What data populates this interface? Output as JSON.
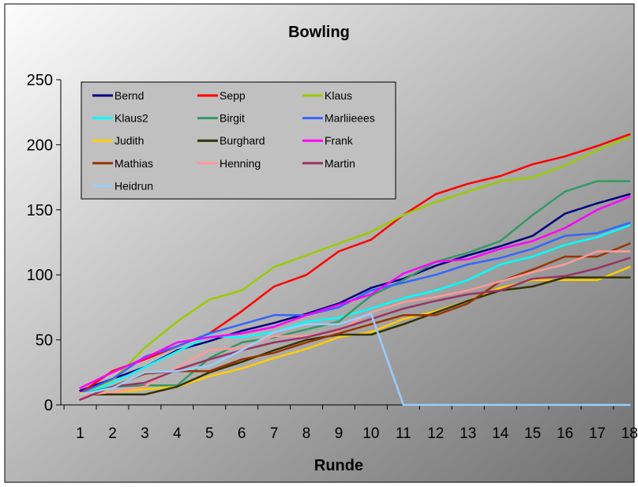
{
  "chart_data": {
    "type": "line",
    "title": "Bowling",
    "xlabel": "Runde",
    "ylabel": "",
    "ylim": [
      0,
      250
    ],
    "yticks": [
      "0",
      "50",
      "100",
      "150",
      "200",
      "250"
    ],
    "categories": [
      "1",
      "2",
      "3",
      "4",
      "5",
      "6",
      "7",
      "8",
      "9",
      "10",
      "11",
      "12",
      "13",
      "14",
      "15",
      "16",
      "17",
      "18"
    ],
    "grid": false,
    "legend_position": "top-left",
    "colors": {
      "background_gradient": [
        "#fdfdfd",
        "#6f6f6f"
      ],
      "axis": "#000000"
    },
    "series": [
      {
        "name": "Bernd",
        "color": "#000080",
        "values": [
          11,
          20,
          29,
          42,
          49,
          57,
          63,
          70,
          78,
          90,
          97,
          107,
          115,
          122,
          130,
          147,
          155,
          162
        ]
      },
      {
        "name": "Sepp",
        "color": "#ff0000",
        "values": [
          9,
          26,
          35,
          45,
          55,
          72,
          91,
          100,
          118,
          127,
          146,
          162,
          170,
          176,
          185,
          191,
          199,
          208
        ]
      },
      {
        "name": "Klaus",
        "color": "#99cc00",
        "values": [
          9,
          19,
          44,
          64,
          81,
          88,
          106,
          115,
          124,
          133,
          146,
          156,
          164,
          172,
          175,
          184,
          196,
          206
        ]
      },
      {
        "name": "Klaus2",
        "color": "#00ffff",
        "values": [
          7,
          17,
          29,
          41,
          53,
          52,
          56,
          64,
          67,
          74,
          82,
          88,
          96,
          108,
          114,
          123,
          129,
          138
        ]
      },
      {
        "name": "Birgit",
        "color": "#339966",
        "values": [
          8,
          14,
          15,
          15,
          36,
          48,
          52,
          58,
          64,
          84,
          96,
          110,
          117,
          126,
          146,
          164,
          172,
          172
        ]
      },
      {
        "name": "Marliieees",
        "color": "#3366ff",
        "values": [
          9,
          20,
          37,
          45,
          55,
          62,
          69,
          69,
          75,
          88,
          94,
          100,
          108,
          113,
          120,
          130,
          132,
          140
        ]
      },
      {
        "name": "Judith",
        "color": "#ffcc00",
        "values": [
          9,
          10,
          12,
          14,
          22,
          28,
          36,
          43,
          52,
          56,
          66,
          72,
          80,
          90,
          96,
          96,
          96,
          106
        ]
      },
      {
        "name": "Burghard",
        "color": "#333300",
        "values": [
          8,
          8,
          8,
          14,
          25,
          33,
          42,
          50,
          54,
          54,
          62,
          71,
          80,
          88,
          91,
          98,
          98,
          98
        ]
      },
      {
        "name": "Frank",
        "color": "#ff00ff",
        "values": [
          13,
          25,
          36,
          48,
          52,
          55,
          60,
          69,
          77,
          85,
          101,
          110,
          112,
          120,
          126,
          136,
          150,
          160
        ]
      },
      {
        "name": "Mathias",
        "color": "#993300",
        "values": [
          4,
          14,
          24,
          26,
          26,
          35,
          40,
          48,
          55,
          62,
          69,
          69,
          78,
          95,
          104,
          114,
          114,
          124
        ]
      },
      {
        "name": "Henning",
        "color": "#ff9999",
        "values": [
          7,
          10,
          14,
          29,
          42,
          44,
          53,
          53,
          57,
          71,
          79,
          83,
          88,
          95,
          102,
          108,
          118,
          118
        ]
      },
      {
        "name": "Martin",
        "color": "#993366",
        "values": [
          4,
          14,
          17,
          27,
          35,
          42,
          48,
          52,
          58,
          66,
          74,
          80,
          85,
          88,
          97,
          99,
          105,
          113
        ]
      },
      {
        "name": "Heidrun",
        "color": "#99ccff",
        "values": [
          8,
          13,
          25,
          26,
          30,
          42,
          56,
          62,
          62,
          70,
          0,
          0,
          0,
          0,
          0,
          0,
          0,
          0
        ]
      }
    ]
  }
}
